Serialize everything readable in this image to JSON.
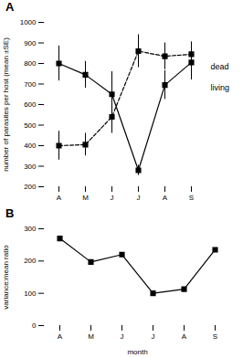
{
  "chart_data": [
    {
      "type": "line",
      "title": "A",
      "categories": [
        "A",
        "M",
        "J",
        "J",
        "A",
        "S"
      ],
      "series": [
        {
          "name": "dead",
          "color": "black",
          "line_style": "dashed",
          "marker": "square",
          "values": [
            400,
            405,
            540,
            860,
            835,
            845
          ],
          "error": [
            70,
            55,
            80,
            80,
            65,
            60
          ]
        },
        {
          "name": "living",
          "color": "black",
          "line_style": "solid",
          "marker": "square",
          "values": [
            800,
            745,
            650,
            280,
            695,
            805
          ],
          "error": [
            85,
            65,
            110,
            25,
            70,
            85
          ]
        }
      ],
      "ylabel": "number of parasites per host (mean ±SE)",
      "ylim": [
        200,
        1000
      ],
      "yticks": [
        200,
        300,
        400,
        500,
        600,
        700,
        800,
        900,
        1000
      ],
      "legend": "right"
    },
    {
      "type": "line",
      "title": "B",
      "categories": [
        "A",
        "M",
        "J",
        "J",
        "A",
        "S"
      ],
      "values": [
        270,
        197,
        220,
        100,
        113,
        235
      ],
      "color": "black",
      "line_style": "solid",
      "marker": "square",
      "xlabel": "month",
      "ylabel": "variance:mean ratio",
      "ylim": [
        0,
        300
      ],
      "yticks": [
        0,
        100,
        200,
        300
      ]
    }
  ]
}
